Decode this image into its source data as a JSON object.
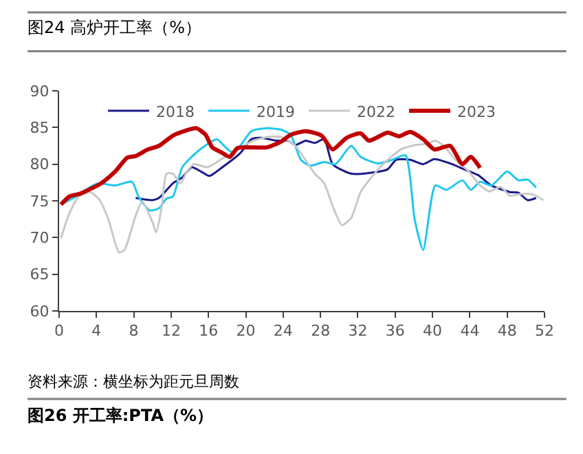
{
  "chart_data": {
    "type": "line",
    "title": "图24 高炉开工率（%）",
    "annotations": [
      "资料来源：横坐标为距元旦周数",
      "图26 开工率:PTA（%）"
    ],
    "xlim": [
      0,
      52
    ],
    "xticks": [
      0,
      4,
      8,
      12,
      16,
      20,
      24,
      28,
      32,
      36,
      40,
      44,
      48,
      52
    ],
    "ylim": [
      60,
      90
    ],
    "yticks": [
      60,
      65,
      70,
      75,
      80,
      85,
      90
    ],
    "legend": "top",
    "marker": "none",
    "line_style": "solid",
    "series": [
      {
        "name": "2018",
        "color": "#1a1a8c",
        "x": [
          8.2,
          10,
          10.7,
          12.2,
          13.2,
          14.2,
          15.2,
          16.1,
          17.4,
          19.4,
          20.6,
          21.6,
          23.3,
          24.5,
          25.3,
          26.4,
          27.4,
          28.4,
          29.3,
          31.3,
          33.2,
          35.2,
          36.1,
          37.6,
          39,
          40.2,
          41.9,
          43.4,
          44.9,
          46.3,
          48.3,
          49.2,
          50.2,
          51.1
        ],
        "values": [
          75.4,
          75.1,
          75.4,
          77.4,
          78.2,
          79.6,
          79,
          78.4,
          79.5,
          81.5,
          83.4,
          83.6,
          83.2,
          83.2,
          82.6,
          83.2,
          82.9,
          83.4,
          80,
          78.7,
          78.8,
          79.3,
          80.6,
          80.6,
          80,
          80.7,
          80.1,
          79.3,
          78.5,
          77.1,
          76.2,
          76.1,
          75.1,
          75.4
        ]
      },
      {
        "name": "2019",
        "color": "#1ec8f0",
        "x": [
          0.2,
          1.8,
          3.6,
          4.3,
          6,
          7.8,
          8.5,
          9.7,
          10.7,
          11.5,
          12.2,
          13.2,
          14.9,
          16.9,
          17.9,
          18.6,
          19.4,
          20.6,
          22.1,
          23.8,
          24.8,
          25.9,
          26.9,
          28.4,
          29.6,
          31.3,
          32.3,
          34.2,
          35.7,
          37.1,
          38.1,
          39,
          40.3,
          41.5,
          43.2,
          44.1,
          45.1,
          46.3,
          48,
          49.2,
          50.2,
          51.1
        ],
        "values": [
          74.5,
          75.6,
          77.1,
          77.4,
          77.1,
          77.6,
          75.6,
          73.7,
          74,
          75.3,
          75.6,
          79.6,
          81.8,
          83.4,
          82.2,
          81.6,
          82.5,
          84.5,
          84.9,
          84.7,
          84,
          80.6,
          79.8,
          80.3,
          80,
          82.5,
          81,
          80.1,
          80.6,
          81.2,
          72.4,
          68.3,
          77.1,
          76.5,
          77.8,
          76.5,
          77.6,
          77.1,
          79,
          77.8,
          77.9,
          76.8
        ]
      },
      {
        "name": "2022",
        "color": "#c8c8c8",
        "x": [
          0.2,
          1,
          2.1,
          3.3,
          4.3,
          5.3,
          6.4,
          7,
          8.2,
          8.9,
          10,
          10.4,
          11,
          11.5,
          12.2,
          13,
          13.7,
          14.4,
          15.9,
          17.4,
          18.9,
          20.6,
          22.3,
          23.8,
          25.3,
          27.4,
          28.4,
          29.3,
          30.3,
          31.3,
          32.3,
          33.2,
          34.7,
          36.6,
          38.1,
          39.5,
          40.3,
          41.2,
          42.4,
          43.9,
          45.1,
          46.1,
          47.3,
          48.3,
          49.2,
          50.7,
          51.9
        ],
        "values": [
          69.9,
          73,
          75.6,
          76.2,
          75.2,
          72.4,
          68,
          68.3,
          73,
          74.9,
          72.1,
          70.7,
          74.3,
          78.7,
          78.7,
          77.4,
          79,
          80,
          79.6,
          80.7,
          81.8,
          83.1,
          83.7,
          83.7,
          82.5,
          78.7,
          77.4,
          74.3,
          71.7,
          72.7,
          76.2,
          77.8,
          80,
          82,
          82.6,
          82.8,
          83.2,
          82.5,
          80.7,
          79,
          77.1,
          76.3,
          76.9,
          75.7,
          75.9,
          75.9,
          75.1
        ]
      },
      {
        "name": "2023",
        "color": "#c00000",
        "x": [
          0.2,
          1.1,
          2.3,
          4.5,
          6,
          7.3,
          8.2,
          9.5,
          10.7,
          12.2,
          13.4,
          14.7,
          15.7,
          16.4,
          17.4,
          18.3,
          19.1,
          20.3,
          22.3,
          23.8,
          24.8,
          26.4,
          28.1,
          29.3,
          30.8,
          32.3,
          33.2,
          35.2,
          36.4,
          37.6,
          39,
          40.2,
          41.9,
          43.2,
          44.1,
          45.1
        ],
        "values": [
          74.5,
          75.6,
          76,
          77.4,
          79,
          80.9,
          81.1,
          82,
          82.5,
          83.9,
          84.5,
          84.9,
          84,
          82.3,
          81.6,
          81,
          82.2,
          82.3,
          82.3,
          83.1,
          84,
          84.5,
          83.9,
          82,
          83.6,
          84.2,
          83.2,
          84.3,
          83.8,
          84.4,
          83.4,
          82,
          82.5,
          80,
          81,
          79.5
        ]
      }
    ]
  }
}
